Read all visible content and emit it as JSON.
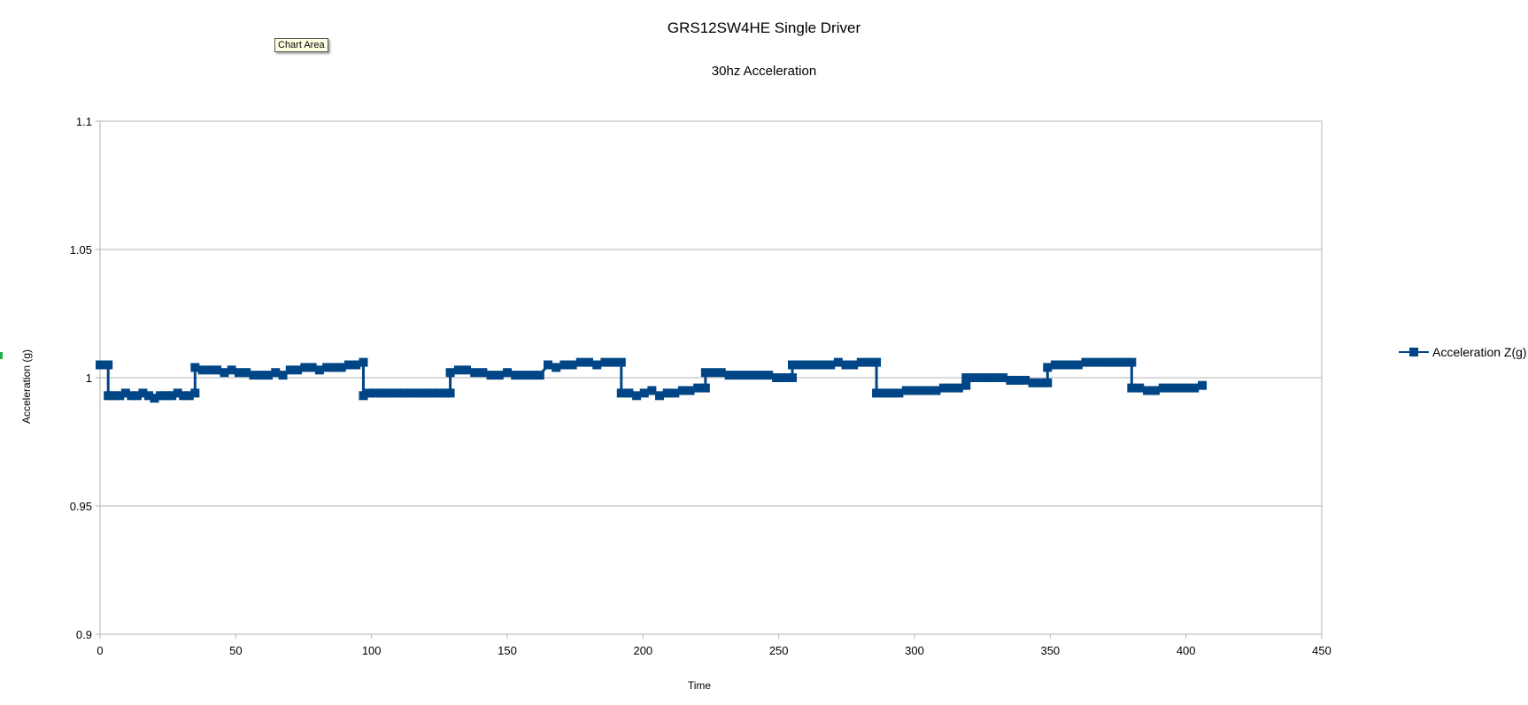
{
  "tooltip": "Chart Area",
  "chart_data": {
    "type": "line",
    "title": "GRS12SW4HE Single Driver",
    "subtitle": "30hz Acceleration",
    "xlabel": "Time",
    "ylabel": "Acceleration (g)",
    "xlim": [
      0,
      450
    ],
    "ylim": [
      0.9,
      1.1
    ],
    "x_ticks": [
      "0",
      "50",
      "100",
      "150",
      "200",
      "250",
      "300",
      "350",
      "400",
      "450"
    ],
    "y_ticks": [
      "1.1",
      "1.05",
      "1",
      "0.95",
      "0.9"
    ],
    "grid": "horizontal",
    "legend_position": "right",
    "series": [
      {
        "name": "Acceleration Z(g)",
        "color": "#004586",
        "marker": "square",
        "segments": [
          {
            "x_start": 0,
            "x_end": 3,
            "values": [
              1.005,
              1.005,
              1.005,
              1.005
            ]
          },
          {
            "x_start": 3,
            "x_end": 35,
            "values": [
              0.993,
              0.993,
              0.993,
              0.994,
              0.993,
              0.993,
              0.994,
              0.993,
              0.992,
              0.993,
              0.993,
              0.993,
              0.994,
              0.993,
              0.993,
              0.994
            ]
          },
          {
            "x_start": 35,
            "x_end": 97,
            "values": [
              1.004,
              1.003,
              1.003,
              1.003,
              1.002,
              1.003,
              1.002,
              1.002,
              1.001,
              1.001,
              1.001,
              1.002,
              1.001,
              1.003,
              1.003,
              1.004,
              1.004,
              1.003,
              1.004,
              1.004,
              1.004,
              1.005,
              1.005,
              1.006
            ]
          },
          {
            "x_start": 97,
            "x_end": 129,
            "values": [
              0.993,
              0.994,
              0.994,
              0.994,
              0.994,
              0.994,
              0.994,
              0.994,
              0.994,
              0.994,
              0.994,
              0.994,
              0.994,
              0.994,
              0.994,
              0.994
            ]
          },
          {
            "x_start": 129,
            "x_end": 192,
            "values": [
              1.002,
              1.003,
              1.003,
              1.002,
              1.002,
              1.001,
              1.001,
              1.002,
              1.001,
              1.001,
              1.001,
              1.001,
              1.005,
              1.004,
              1.005,
              1.005,
              1.006,
              1.006,
              1.005,
              1.006,
              1.006,
              1.006
            ]
          },
          {
            "x_start": 192,
            "x_end": 223,
            "values": [
              0.994,
              0.994,
              0.993,
              0.994,
              0.995,
              0.993,
              0.994,
              0.994,
              0.995,
              0.995,
              0.996,
              0.996
            ]
          },
          {
            "x_start": 223,
            "x_end": 255,
            "values": [
              1.002,
              1.002,
              1.002,
              1.001,
              1.001,
              1.001,
              1.001,
              1.001,
              1.001,
              1.0,
              1.0,
              1.0
            ]
          },
          {
            "x_start": 255,
            "x_end": 286,
            "values": [
              1.005,
              1.005,
              1.005,
              1.005,
              1.005,
              1.005,
              1.006,
              1.005,
              1.005,
              1.006,
              1.006,
              1.006
            ]
          },
          {
            "x_start": 286,
            "x_end": 319,
            "values": [
              0.994,
              0.994,
              0.994,
              0.994,
              0.995,
              0.995,
              0.995,
              0.995,
              0.995,
              0.996,
              0.996,
              0.996,
              0.997
            ]
          },
          {
            "x_start": 319,
            "x_end": 349,
            "values": [
              1.0,
              1.0,
              1.0,
              1.0,
              1.0,
              1.0,
              0.999,
              0.999,
              0.999,
              0.998,
              0.998,
              0.998
            ]
          },
          {
            "x_start": 349,
            "x_end": 380,
            "values": [
              1.004,
              1.005,
              1.005,
              1.005,
              1.005,
              1.006,
              1.006,
              1.006,
              1.006,
              1.006,
              1.006,
              1.006
            ]
          },
          {
            "x_start": 380,
            "x_end": 406,
            "values": [
              0.996,
              0.996,
              0.995,
              0.995,
              0.996,
              0.996,
              0.996,
              0.996,
              0.996,
              0.997
            ]
          }
        ]
      }
    ]
  }
}
